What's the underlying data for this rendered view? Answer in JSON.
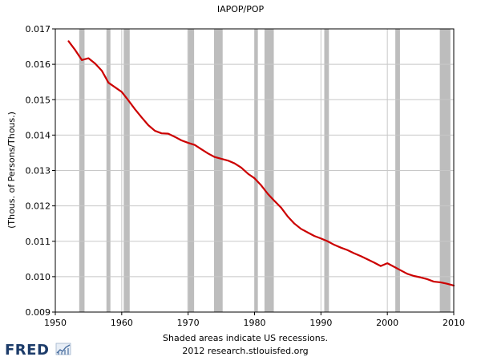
{
  "chart_data": {
    "type": "line",
    "title": "IAPOP/POP",
    "ylabel": "(Thous. of Persons/Thous.)",
    "xlabel": "",
    "xlim": [
      1950,
      2010
    ],
    "ylim": [
      0.009,
      0.017
    ],
    "x_ticks": [
      {
        "value": 1950,
        "label": "1950"
      },
      {
        "value": 1960,
        "label": "1960"
      },
      {
        "value": 1970,
        "label": "1970"
      },
      {
        "value": 1980,
        "label": "1980"
      },
      {
        "value": 1990,
        "label": "1990"
      },
      {
        "value": 2000,
        "label": "2000"
      },
      {
        "value": 2010,
        "label": "2010"
      }
    ],
    "y_ticks": [
      {
        "value": 0.009,
        "label": "0.009"
      },
      {
        "value": 0.01,
        "label": "0.010"
      },
      {
        "value": 0.011,
        "label": "0.011"
      },
      {
        "value": 0.012,
        "label": "0.012"
      },
      {
        "value": 0.013,
        "label": "0.013"
      },
      {
        "value": 0.014,
        "label": "0.014"
      },
      {
        "value": 0.015,
        "label": "0.015"
      },
      {
        "value": 0.016,
        "label": "0.016"
      },
      {
        "value": 0.017,
        "label": "0.017"
      }
    ],
    "grid": true,
    "recessions": [
      [
        1953.6,
        1954.4
      ],
      [
        1957.7,
        1958.3
      ],
      [
        1960.3,
        1961.2
      ],
      [
        1969.9,
        1970.9
      ],
      [
        1973.9,
        1975.2
      ],
      [
        1980.0,
        1980.5
      ],
      [
        1981.5,
        1982.9
      ],
      [
        1990.5,
        1991.2
      ],
      [
        2001.2,
        2001.9
      ],
      [
        2007.9,
        2009.5
      ]
    ],
    "series": [
      {
        "color": "#cc0000",
        "x": [
          1952,
          1953,
          1954,
          1955,
          1956,
          1957,
          1958,
          1959,
          1960,
          1961,
          1962,
          1963,
          1964,
          1965,
          1966,
          1967,
          1968,
          1969,
          1970,
          1971,
          1972,
          1973,
          1974,
          1975,
          1976,
          1977,
          1978,
          1979,
          1980,
          1981,
          1982,
          1983,
          1984,
          1985,
          1986,
          1987,
          1988,
          1989,
          1990,
          1991,
          1992,
          1993,
          1994,
          1995,
          1996,
          1997,
          1998,
          1999,
          2000,
          2001,
          2002,
          2003,
          2004,
          2005,
          2006,
          2007,
          2008,
          2009,
          2010
        ],
        "values": [
          0.01665,
          0.0164,
          0.01612,
          0.01617,
          0.01602,
          0.01582,
          0.01548,
          0.01535,
          0.01522,
          0.01498,
          0.01473,
          0.0145,
          0.01428,
          0.01412,
          0.01405,
          0.01404,
          0.01395,
          0.01385,
          0.01378,
          0.01372,
          0.0136,
          0.01348,
          0.01338,
          0.01333,
          0.01328,
          0.0132,
          0.01308,
          0.01291,
          0.01278,
          0.01258,
          0.01234,
          0.01214,
          0.01195,
          0.0117,
          0.0115,
          0.01135,
          0.01125,
          0.01115,
          0.01108,
          0.011,
          0.0109,
          0.01082,
          0.01075,
          0.01066,
          0.01058,
          0.01049,
          0.0104,
          0.0103,
          0.01038,
          0.01028,
          0.01018,
          0.01008,
          0.01002,
          0.00998,
          0.00993,
          0.00986,
          0.00984,
          0.0098,
          0.00975
        ]
      }
    ]
  },
  "footer": {
    "line1": "Shaded areas indicate US recessions.",
    "line2": "2012 research.stlouisfed.org"
  },
  "logo": {
    "text": "FRED",
    "icon": "fred-chart-icon"
  },
  "colors": {
    "line": "#cc0000",
    "recession": "#bdbdbd",
    "grid": "#c8c8c8",
    "logo": "#1d3c6a"
  }
}
